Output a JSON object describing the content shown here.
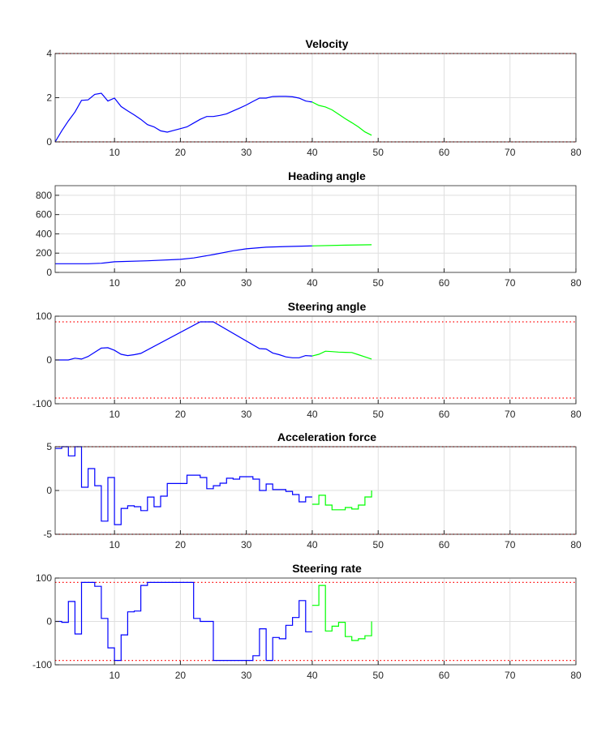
{
  "chart_data": [
    {
      "type": "line",
      "title": "Velocity",
      "xlim": [
        1,
        80
      ],
      "ylim": [
        0,
        4
      ],
      "xticks": [
        10,
        20,
        30,
        40,
        50,
        60,
        70,
        80
      ],
      "yticks": [
        0,
        2,
        4
      ],
      "grid": true,
      "limits": {
        "values": [
          0,
          4
        ],
        "color": "#ff0000"
      },
      "series": [
        {
          "color": "#0000ff",
          "step": false,
          "x": [
            1,
            2,
            3,
            4,
            5,
            6,
            7,
            8,
            9,
            10,
            11,
            12,
            13,
            14,
            15,
            16,
            17,
            18,
            19,
            20,
            21,
            22,
            23,
            24,
            25,
            26,
            27,
            28,
            29,
            30,
            31,
            32,
            33,
            34,
            35,
            36,
            37,
            38,
            39,
            40
          ],
          "y": [
            0,
            0.5,
            0.95,
            1.35,
            1.88,
            1.9,
            2.15,
            2.2,
            1.85,
            1.98,
            1.6,
            1.4,
            1.22,
            1.02,
            0.78,
            0.68,
            0.5,
            0.44,
            0.52,
            0.6,
            0.68,
            0.85,
            1.02,
            1.15,
            1.15,
            1.2,
            1.27,
            1.4,
            1.53,
            1.67,
            1.83,
            1.98,
            1.98,
            2.05,
            2.06,
            2.06,
            2.04,
            1.98,
            1.85,
            1.8
          ]
        },
        {
          "color": "#00ff00",
          "step": false,
          "x": [
            40,
            41,
            42,
            43,
            44,
            45,
            46,
            47,
            48,
            49
          ],
          "y": [
            1.8,
            1.65,
            1.58,
            1.45,
            1.25,
            1.05,
            0.87,
            0.68,
            0.45,
            0.3
          ]
        }
      ]
    },
    {
      "type": "line",
      "title": "Heading angle",
      "xlim": [
        1,
        80
      ],
      "ylim": [
        0,
        900
      ],
      "xticks": [
        10,
        20,
        30,
        40,
        50,
        60,
        70,
        80
      ],
      "yticks": [
        0,
        200,
        400,
        600,
        800
      ],
      "grid": true,
      "series": [
        {
          "color": "#0000ff",
          "step": false,
          "x": [
            1,
            6,
            8,
            10,
            15,
            20,
            22,
            25,
            28,
            30,
            33,
            36,
            40
          ],
          "y": [
            90,
            90,
            95,
            110,
            120,
            135,
            150,
            185,
            225,
            245,
            262,
            268,
            275
          ]
        },
        {
          "color": "#00ff00",
          "step": false,
          "x": [
            40,
            45,
            49
          ],
          "y": [
            275,
            283,
            287
          ]
        }
      ]
    },
    {
      "type": "line",
      "title": "Steering angle",
      "xlim": [
        1,
        80
      ],
      "ylim": [
        -100,
        100
      ],
      "xticks": [
        10,
        20,
        30,
        40,
        50,
        60,
        70,
        80
      ],
      "yticks": [
        -100,
        0,
        100
      ],
      "grid": true,
      "limits": {
        "values": [
          -87,
          87
        ],
        "color": "#ff0000"
      },
      "series": [
        {
          "color": "#0000ff",
          "step": false,
          "x": [
            1,
            3,
            4,
            5,
            6,
            8,
            9,
            10,
            11,
            12,
            13,
            14,
            23,
            25,
            32,
            33,
            34,
            35,
            36,
            37,
            38,
            39,
            40
          ],
          "y": [
            0,
            0,
            4,
            2,
            8,
            27,
            28,
            22,
            13,
            10,
            12,
            15,
            87,
            87,
            26,
            25,
            16,
            12,
            7,
            5,
            5,
            10,
            9
          ]
        },
        {
          "color": "#00ff00",
          "step": false,
          "x": [
            40,
            41,
            42,
            43,
            44,
            45,
            46,
            47,
            48,
            49
          ],
          "y": [
            9,
            13,
            20,
            19,
            18,
            17.5,
            17,
            12,
            7,
            2
          ]
        }
      ]
    },
    {
      "type": "line",
      "title": "Acceleration force",
      "xlim": [
        1,
        80
      ],
      "ylim": [
        -5,
        5
      ],
      "xticks": [
        10,
        20,
        30,
        40,
        50,
        60,
        70,
        80
      ],
      "yticks": [
        -5,
        0,
        5
      ],
      "grid": true,
      "limits": {
        "values": [
          -5,
          5
        ],
        "color": "#ff0000"
      },
      "series": [
        {
          "color": "#0000ff",
          "step": true,
          "x": [
            1,
            2,
            3,
            4,
            5,
            6,
            7,
            8,
            9,
            10,
            11,
            12,
            13,
            14,
            15,
            16,
            17,
            18,
            19,
            20,
            21,
            22,
            23,
            24,
            25,
            26,
            27,
            28,
            29,
            30,
            31,
            32,
            33,
            34,
            35,
            36,
            37,
            38,
            39,
            40
          ],
          "y": [
            4.8,
            5,
            3.95,
            5,
            0.37,
            2.5,
            0.55,
            -3.5,
            1.48,
            -3.9,
            -2.05,
            -1.75,
            -1.85,
            -2.3,
            -0.75,
            -1.85,
            -0.65,
            0.8,
            0.8,
            0.8,
            1.75,
            1.75,
            1.48,
            0.2,
            0.55,
            0.83,
            1.4,
            1.3,
            1.57,
            1.57,
            1.3,
            0,
            0.74,
            0.1,
            0.1,
            -0.1,
            -0.46,
            -1.3,
            -0.74,
            -0.74
          ]
        },
        {
          "color": "#00ff00",
          "step": true,
          "x": [
            40,
            41,
            42,
            43,
            44,
            45,
            46,
            47,
            48,
            49
          ],
          "y": [
            -1.57,
            -0.55,
            -1.67,
            -2.2,
            -2.2,
            -1.94,
            -2.12,
            -1.67,
            -0.74,
            0
          ]
        }
      ]
    },
    {
      "type": "line",
      "title": "Steering rate",
      "xlim": [
        1,
        80
      ],
      "ylim": [
        -100,
        100
      ],
      "xticks": [
        10,
        20,
        30,
        40,
        50,
        60,
        70,
        80
      ],
      "yticks": [
        -100,
        0,
        100
      ],
      "grid": true,
      "limits": {
        "values": [
          -90,
          90
        ],
        "color": "#ff0000"
      },
      "series": [
        {
          "color": "#0000ff",
          "step": true,
          "x": [
            1,
            2,
            3,
            4,
            5,
            6,
            7,
            8,
            9,
            10,
            11,
            12,
            13,
            14,
            15,
            16,
            17,
            18,
            19,
            20,
            21,
            22,
            23,
            24,
            25,
            26,
            27,
            28,
            29,
            30,
            31,
            32,
            33,
            34,
            35,
            36,
            37,
            38,
            39,
            40
          ],
          "y": [
            0,
            -2,
            46,
            -29,
            90,
            90,
            81,
            7,
            -61,
            -90,
            -31,
            22,
            24,
            83,
            90,
            90,
            90,
            90,
            90,
            90,
            90,
            7,
            0,
            0,
            -90,
            -90,
            -90,
            -90,
            -90,
            -90,
            -79,
            -17,
            -90,
            -37,
            -40,
            -9,
            9,
            48,
            -24,
            -24
          ]
        },
        {
          "color": "#00ff00",
          "step": true,
          "x": [
            40,
            41,
            42,
            43,
            44,
            45,
            46,
            47,
            48,
            49
          ],
          "y": [
            37,
            83,
            -22,
            -11,
            -2,
            -35,
            -44,
            -40,
            -33,
            0
          ]
        }
      ]
    }
  ]
}
